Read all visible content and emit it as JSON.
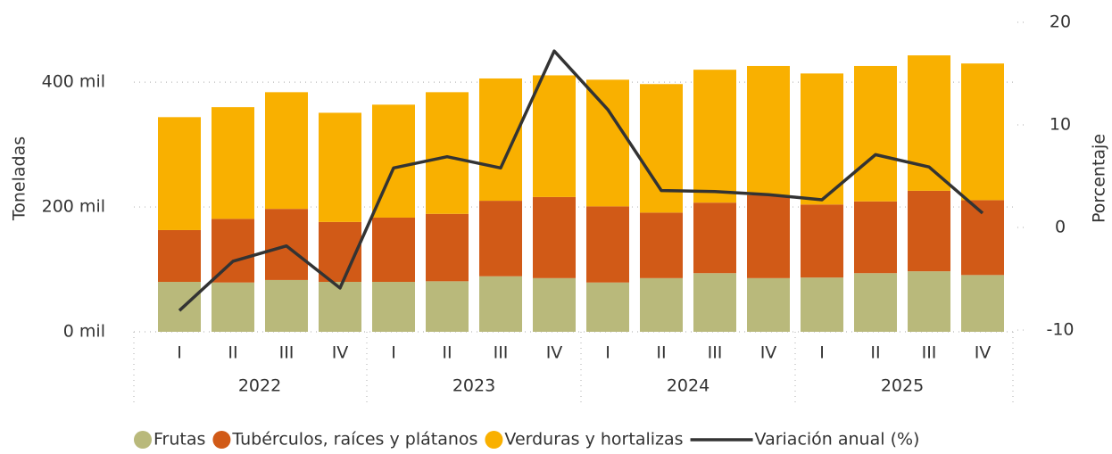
{
  "chart_data": {
    "type": "bar",
    "stacked": true,
    "categories": [
      "I",
      "II",
      "III",
      "IV",
      "I",
      "II",
      "III",
      "IV",
      "I",
      "II",
      "III",
      "IV",
      "I",
      "II",
      "III",
      "IV"
    ],
    "years": [
      "2022",
      "2023",
      "2024",
      "2025"
    ],
    "ylabel": "Toneladas",
    "y2label": "Porcentaje",
    "ylim": [
      0,
      496000
    ],
    "yticks": [
      {
        "value": 0,
        "label": "0 mil"
      },
      {
        "value": 200000,
        "label": "200 mil"
      },
      {
        "value": 400000,
        "label": "400 mil"
      }
    ],
    "y2lim": [
      -10.17,
      20
    ],
    "y2ticks": [
      -10,
      0,
      10,
      20
    ],
    "grid": true,
    "legend": "bottom",
    "series": [
      {
        "name": "Frutas",
        "color": "#b9b97b",
        "values": [
          80000,
          79000,
          83000,
          80000,
          80000,
          81000,
          89000,
          86000,
          79000,
          86000,
          94000,
          86000,
          87000,
          94000,
          97000,
          91000
        ]
      },
      {
        "name": "Tubérculos, raíces y plátanos",
        "color": "#d15a17",
        "values": [
          83000,
          102000,
          114000,
          96000,
          103000,
          108000,
          121000,
          130000,
          122000,
          105000,
          113000,
          133000,
          117000,
          115000,
          129000,
          120000
        ]
      },
      {
        "name": "Verduras y hortalizas",
        "color": "#f9b000",
        "values": [
          181000,
          179000,
          187000,
          175000,
          181000,
          195000,
          196000,
          195000,
          203000,
          206000,
          213000,
          207000,
          210000,
          217000,
          217000,
          219000
        ]
      },
      {
        "name": "Variación anual (%)",
        "color": "#333333",
        "axis": "y2",
        "values": [
          -8.1,
          -3.3,
          -1.8,
          -5.9,
          5.8,
          6.9,
          5.8,
          17.2,
          11.5,
          3.6,
          3.5,
          3.2,
          2.7,
          7.1,
          5.9,
          1.4
        ]
      }
    ]
  }
}
